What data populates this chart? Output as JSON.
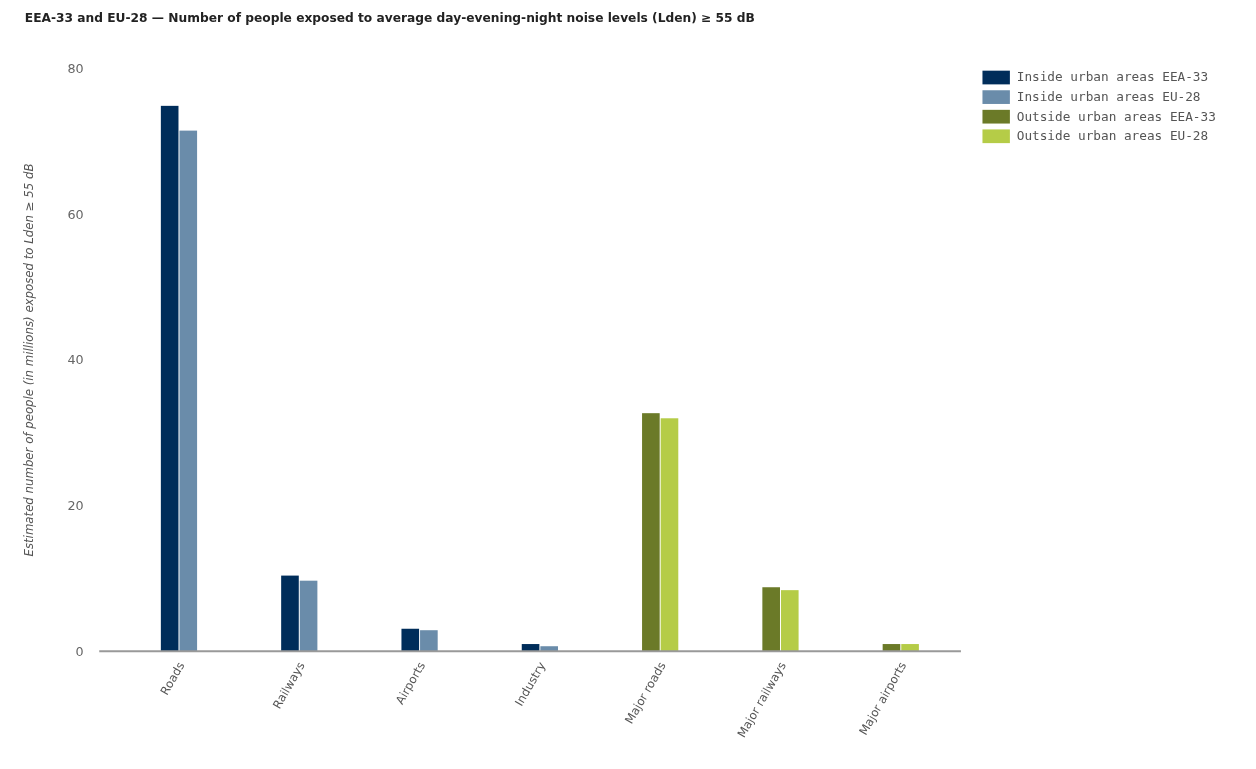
{
  "chart_data": {
    "type": "bar",
    "title": "EEA-33 and EU-28 — Number of people exposed to average day-evening-night noise levels (Lden) ≥ 55 dB",
    "ylabel": "Estimated number of people (in millions) exposed to Lden ≥ 55 dB",
    "categories": [
      "Roads",
      "Railways",
      "Airports",
      "Industry",
      "Major roads",
      "Major railways",
      "Major airports"
    ],
    "series": [
      {
        "name": "Inside urban areas EEA-33",
        "color": "#002d5a",
        "values": [
          74.9,
          10.4,
          3.1,
          1.0,
          null,
          null,
          null
        ]
      },
      {
        "name": "Inside urban areas EU-28",
        "color": "#6a8caa",
        "values": [
          71.5,
          9.7,
          2.9,
          0.7,
          null,
          null,
          null
        ]
      },
      {
        "name": "Outside urban areas EEA-33",
        "color": "#6b7a28",
        "values": [
          null,
          null,
          null,
          null,
          32.7,
          8.8,
          1.0
        ]
      },
      {
        "name": "Outside urban areas EU-28",
        "color": "#b5cc47",
        "values": [
          null,
          null,
          null,
          null,
          32.0,
          8.4,
          1.0
        ]
      }
    ],
    "ylim": [
      0,
      80
    ],
    "yticks": [
      0,
      20,
      40,
      60,
      80
    ],
    "grid": false,
    "legend": "top right"
  }
}
